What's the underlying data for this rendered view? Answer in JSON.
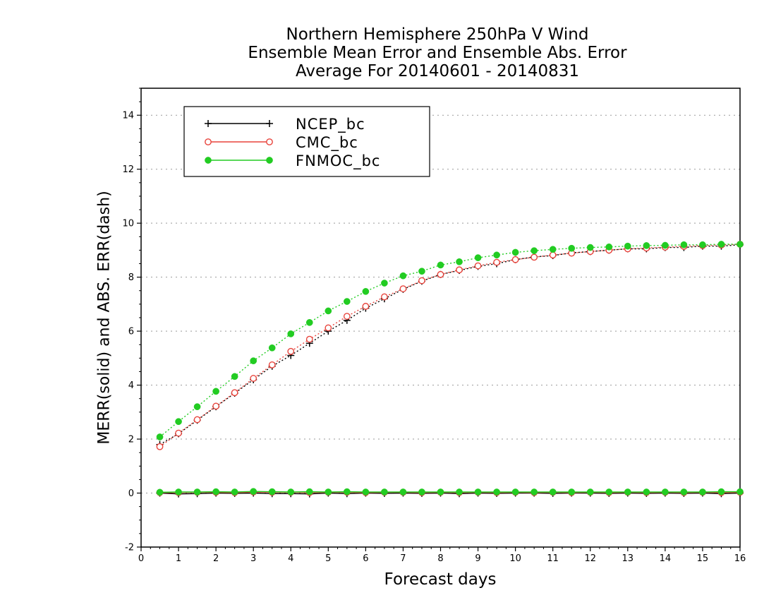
{
  "chart_data": {
    "type": "line",
    "title": [
      "Northern Hemisphere 250hPa V Wind",
      "Ensemble Mean Error and Ensemble Abs. Error",
      "Average For 20140601 - 20140831"
    ],
    "xlabel": "Forecast days",
    "ylabel": "MERR(solid) and ABS. ERR(dash)",
    "xlim": [
      0,
      16
    ],
    "ylim": [
      -2,
      15
    ],
    "xticks": [
      "0",
      "1",
      "2",
      "3",
      "4",
      "5",
      "6",
      "7",
      "8",
      "9",
      "10",
      "11",
      "12",
      "13",
      "14",
      "15",
      "16"
    ],
    "yticks": [
      "-2",
      "0",
      "2",
      "4",
      "6",
      "8",
      "10",
      "12",
      "14"
    ],
    "grid": "horizontal dotted",
    "legend_position": "top-left",
    "x": [
      0.5,
      1,
      1.5,
      2,
      2.5,
      3,
      3.5,
      4,
      4.5,
      5,
      5.5,
      6,
      6.5,
      7,
      7.5,
      8,
      8.5,
      9,
      9.5,
      10,
      10.5,
      11,
      11.5,
      12,
      12.5,
      13,
      13.5,
      14,
      14.5,
      15,
      15.5,
      16
    ],
    "series": [
      {
        "name": "NCEP_bc",
        "color": "#000000",
        "marker": "plus",
        "mean_error": [
          0.0,
          -0.03,
          -0.02,
          0.0,
          -0.01,
          0.0,
          -0.02,
          -0.02,
          -0.03,
          0.0,
          -0.02,
          0.0,
          -0.01,
          0.0,
          -0.01,
          0.0,
          -0.02,
          0.0,
          -0.01,
          0.0,
          0.0,
          -0.01,
          0.0,
          0.0,
          -0.01,
          0.0,
          -0.01,
          0.0,
          -0.01,
          0.0,
          -0.02,
          0.0
        ],
        "abs_error": [
          1.8,
          2.2,
          2.7,
          3.2,
          3.7,
          4.2,
          4.7,
          5.1,
          5.55,
          6.0,
          6.4,
          6.85,
          7.2,
          7.55,
          7.85,
          8.1,
          8.25,
          8.4,
          8.5,
          8.65,
          8.75,
          8.8,
          8.9,
          8.95,
          9.0,
          9.05,
          9.05,
          9.1,
          9.1,
          9.15,
          9.15,
          9.2
        ]
      },
      {
        "name": "CMC_bc",
        "color": "#e8443c",
        "marker": "open-circle",
        "mean_error": [
          0.02,
          0.02,
          0.03,
          0.03,
          0.02,
          0.04,
          0.03,
          0.03,
          0.02,
          0.03,
          0.03,
          0.02,
          0.03,
          0.03,
          0.02,
          0.03,
          0.02,
          0.03,
          0.02,
          0.03,
          0.02,
          0.03,
          0.02,
          0.03,
          0.02,
          0.03,
          0.02,
          0.03,
          0.02,
          0.03,
          0.02,
          0.03
        ],
        "abs_error": [
          1.72,
          2.22,
          2.72,
          3.22,
          3.72,
          4.25,
          4.75,
          5.25,
          5.7,
          6.12,
          6.55,
          6.92,
          7.27,
          7.57,
          7.87,
          8.1,
          8.27,
          8.42,
          8.55,
          8.65,
          8.74,
          8.82,
          8.89,
          8.95,
          9.0,
          9.05,
          9.08,
          9.11,
          9.14,
          9.17,
          9.19,
          9.22
        ]
      },
      {
        "name": "FNMOC_bc",
        "color": "#22cc22",
        "marker": "filled-circle",
        "mean_error": [
          0.03,
          0.04,
          0.04,
          0.05,
          0.04,
          0.06,
          0.05,
          0.04,
          0.05,
          0.04,
          0.05,
          0.04,
          0.04,
          0.04,
          0.04,
          0.04,
          0.04,
          0.04,
          0.04,
          0.04,
          0.04,
          0.04,
          0.04,
          0.04,
          0.04,
          0.04,
          0.04,
          0.04,
          0.04,
          0.04,
          0.05,
          0.05
        ],
        "abs_error": [
          2.08,
          2.65,
          3.2,
          3.77,
          4.32,
          4.9,
          5.38,
          5.9,
          6.32,
          6.75,
          7.1,
          7.47,
          7.78,
          8.05,
          8.22,
          8.45,
          8.57,
          8.72,
          8.82,
          8.92,
          8.98,
          9.03,
          9.07,
          9.1,
          9.12,
          9.15,
          9.17,
          9.18,
          9.2,
          9.2,
          9.22,
          9.22
        ]
      }
    ]
  }
}
